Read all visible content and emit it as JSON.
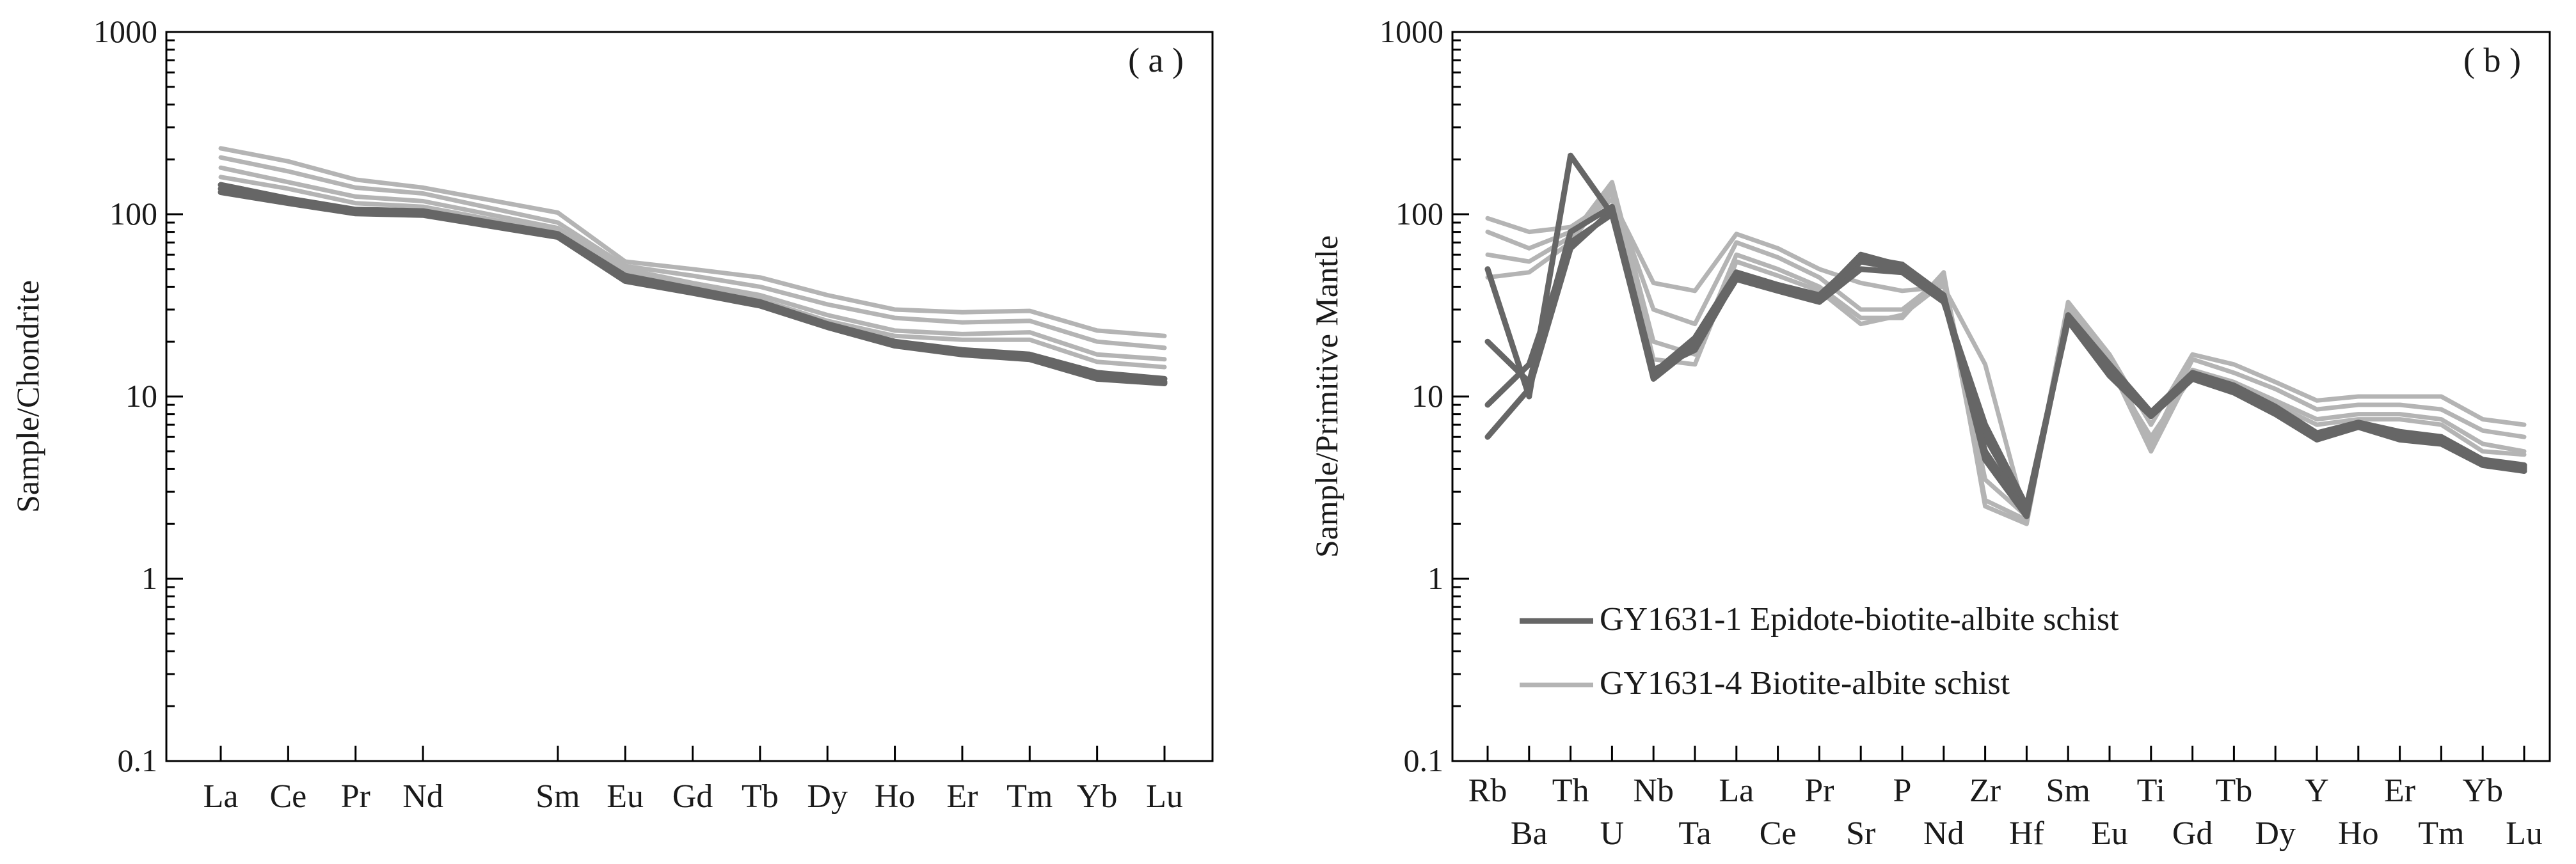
{
  "colors": {
    "dark": "#666666",
    "light": "#b4b4b4",
    "axis": "#000000"
  },
  "chart_data": [
    {
      "type": "line",
      "panel_label": "( a )",
      "ylabel": "Sample/Chondrite",
      "yscale": "log",
      "ylim": [
        0.1,
        1000
      ],
      "ytick_labels": [
        "1000",
        "100",
        "10",
        "1",
        "0.1"
      ],
      "ytick_values": [
        1000,
        100,
        10,
        1,
        0.1
      ],
      "categories": [
        "La",
        "Ce",
        "Pr",
        "Nd",
        "Sm",
        "Eu",
        "Gd",
        "Tb",
        "Dy",
        "Ho",
        "Er",
        "Tm",
        "Yb",
        "Lu"
      ],
      "x_positions": [
        0,
        1,
        2,
        3,
        5,
        6,
        7,
        8,
        9,
        10,
        11,
        12,
        13,
        14
      ],
      "series": [
        {
          "name": "GY1631-1",
          "group": "dark",
          "values": [
            145,
            122,
            106,
            104,
            78,
            46,
            39,
            33,
            25,
            20,
            18,
            17,
            13.5,
            12.5
          ]
        },
        {
          "name": "GY1631-1",
          "group": "dark",
          "values": [
            138,
            118,
            103,
            101,
            76,
            44,
            38,
            32,
            24.5,
            19.5,
            17.5,
            16.5,
            13,
            12
          ]
        },
        {
          "name": "GY1631-1",
          "group": "dark",
          "values": [
            132,
            115,
            101,
            99,
            75,
            43,
            37,
            31.5,
            24,
            19,
            17,
            16,
            12.5,
            11.8
          ]
        },
        {
          "name": "GY1631-4",
          "group": "light",
          "values": [
            230,
            195,
            155,
            140,
            102,
            55,
            50,
            45,
            36,
            30,
            29,
            29.5,
            23,
            21.5
          ]
        },
        {
          "name": "GY1631-4",
          "group": "light",
          "values": [
            205,
            172,
            140,
            130,
            90,
            52,
            46,
            40,
            32,
            27,
            25.5,
            26,
            20,
            18.5
          ]
        },
        {
          "name": "GY1631-4",
          "group": "light",
          "values": [
            180,
            150,
            125,
            118,
            84,
            50,
            42,
            36,
            28,
            23,
            22,
            22.5,
            17,
            16
          ]
        },
        {
          "name": "GY1631-4",
          "group": "light",
          "values": [
            160,
            138,
            115,
            110,
            80,
            48,
            40,
            34,
            26,
            21.5,
            20.5,
            20.5,
            15.5,
            14.5
          ]
        }
      ]
    },
    {
      "type": "line",
      "panel_label": "( b )",
      "ylabel": "Sample/Primitive Mantle",
      "yscale": "log",
      "ylim": [
        0.1,
        1000
      ],
      "ytick_labels": [
        "1000",
        "100",
        "10",
        "1",
        "0.1"
      ],
      "ytick_values": [
        1000,
        100,
        10,
        1,
        0.1
      ],
      "categories": [
        "Rb",
        "Ba",
        "Th",
        "U",
        "Nb",
        "Ta",
        "La",
        "Ce",
        "Pr",
        "Sr",
        "P",
        "Nd",
        "Zr",
        "Hf",
        "Sm",
        "Eu",
        "Ti",
        "Gd",
        "Tb",
        "Dy",
        "Y",
        "Ho",
        "Er",
        "Tm",
        "Yb",
        "Lu"
      ],
      "legend": [
        {
          "label": "GY1631-1 Epidote-biotite-albite schist",
          "group": "dark"
        },
        {
          "label": "GY1631-4 Biotite-albite schist",
          "group": "light"
        }
      ],
      "series": [
        {
          "name": "GY1631-1",
          "group": "dark",
          "values": [
            50,
            10,
            210,
            100,
            13,
            20,
            47,
            40,
            35,
            60,
            52,
            35,
            6,
            2.4,
            27,
            14,
            8,
            13,
            11,
            8.5,
            6,
            7,
            6,
            5.7,
            4.3,
            4
          ]
        },
        {
          "name": "GY1631-1",
          "group": "dark",
          "values": [
            20,
            12,
            80,
            110,
            14,
            18,
            45,
            40,
            34,
            55,
            50,
            34,
            5,
            2.3,
            27,
            14,
            8,
            13,
            11,
            8.5,
            6.2,
            7,
            6.2,
            5.8,
            4.4,
            4.1
          ]
        },
        {
          "name": "GY1631-1",
          "group": "dark",
          "values": [
            6,
            11,
            65,
            105,
            12.5,
            19,
            44,
            38,
            33,
            50,
            48,
            33,
            7,
            2.5,
            26,
            13,
            7.8,
            12.5,
            10.5,
            8,
            5.8,
            6.8,
            5.8,
            5.5,
            4.2,
            3.9
          ]
        },
        {
          "name": "GY1631-1",
          "group": "dark",
          "values": [
            9,
            15,
            70,
            100,
            13.5,
            21,
            48,
            41,
            36,
            58,
            53,
            36,
            4.5,
            2.2,
            28,
            15,
            8.2,
            13.5,
            11.5,
            8.8,
            6.3,
            7.2,
            6.4,
            6,
            4.5,
            4.2
          ]
        },
        {
          "name": "GY1631-4",
          "group": "light",
          "values": [
            95,
            80,
            85,
            120,
            42,
            38,
            78,
            65,
            50,
            42,
            38,
            40,
            15,
            2.1,
            33,
            17,
            7,
            17,
            15,
            12,
            9.5,
            10,
            10,
            10,
            7.5,
            7
          ]
        },
        {
          "name": "GY1631-4",
          "group": "light",
          "values": [
            80,
            65,
            80,
            130,
            30,
            25,
            70,
            58,
            45,
            30,
            30,
            45,
            3.5,
            2.2,
            30,
            16,
            5.5,
            16,
            13.5,
            11,
            8.5,
            9,
            9,
            8.5,
            6.5,
            6
          ]
        },
        {
          "name": "GY1631-4",
          "group": "light",
          "values": [
            60,
            55,
            75,
            150,
            20,
            17,
            60,
            50,
            40,
            27,
            27,
            48,
            2.5,
            2.0,
            31,
            15,
            5,
            14,
            12,
            9.5,
            7.5,
            8,
            8,
            7.5,
            5.5,
            5
          ]
        },
        {
          "name": "GY1631-4",
          "group": "light",
          "values": [
            45,
            48,
            70,
            140,
            16,
            15,
            55,
            46,
            38,
            25,
            28,
            42,
            2.7,
            2.1,
            28,
            14,
            6,
            13,
            11,
            9,
            7,
            7.5,
            7.5,
            7,
            5,
            4.8
          ]
        }
      ]
    }
  ]
}
